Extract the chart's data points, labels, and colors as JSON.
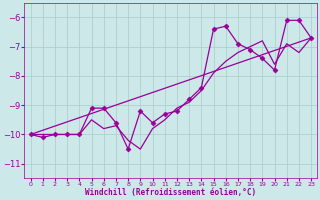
{
  "xlabel": "Windchill (Refroidissement éolien,°C)",
  "background_color": "#cce8e8",
  "line_color": "#990099",
  "xlim": [
    -0.5,
    23.5
  ],
  "ylim": [
    -11.5,
    -5.5
  ],
  "yticks": [
    -11,
    -10,
    -9,
    -8,
    -7,
    -6
  ],
  "xticks": [
    0,
    1,
    2,
    3,
    4,
    5,
    6,
    7,
    8,
    9,
    10,
    11,
    12,
    13,
    14,
    15,
    16,
    17,
    18,
    19,
    20,
    21,
    22,
    23
  ],
  "series1_x": [
    0,
    1,
    2,
    3,
    4,
    5,
    6,
    7,
    8,
    9,
    10,
    11,
    12,
    13,
    14,
    15,
    16,
    17,
    18,
    19,
    20,
    21,
    22,
    23
  ],
  "series1_y": [
    -10.0,
    -10.1,
    -10.0,
    -10.0,
    -10.0,
    -9.1,
    -9.1,
    -9.6,
    -10.5,
    -9.2,
    -9.6,
    -9.3,
    -9.2,
    -8.8,
    -8.4,
    -6.4,
    -6.3,
    -6.9,
    -7.1,
    -7.4,
    -7.8,
    -6.1,
    -6.1,
    -6.7
  ],
  "series2_x": [
    0,
    1,
    2,
    3,
    4,
    5,
    6,
    7,
    8,
    9,
    10,
    11,
    12,
    13,
    14,
    15,
    16,
    17,
    18,
    19,
    20,
    21,
    22,
    23
  ],
  "series2_y": [
    -10.0,
    -10.0,
    -10.0,
    -10.0,
    -10.0,
    -9.5,
    -9.8,
    -9.7,
    -10.2,
    -10.5,
    -9.8,
    -9.5,
    -9.1,
    -8.9,
    -8.5,
    -7.9,
    -7.5,
    -7.2,
    -7.0,
    -6.8,
    -7.6,
    -6.9,
    -7.2,
    -6.7
  ],
  "series3_x": [
    0,
    23
  ],
  "series3_y": [
    -10.0,
    -6.7
  ],
  "grid_color": "#aacccc",
  "grid_linewidth": 0.5,
  "line_width": 0.9,
  "marker_size": 2.5
}
